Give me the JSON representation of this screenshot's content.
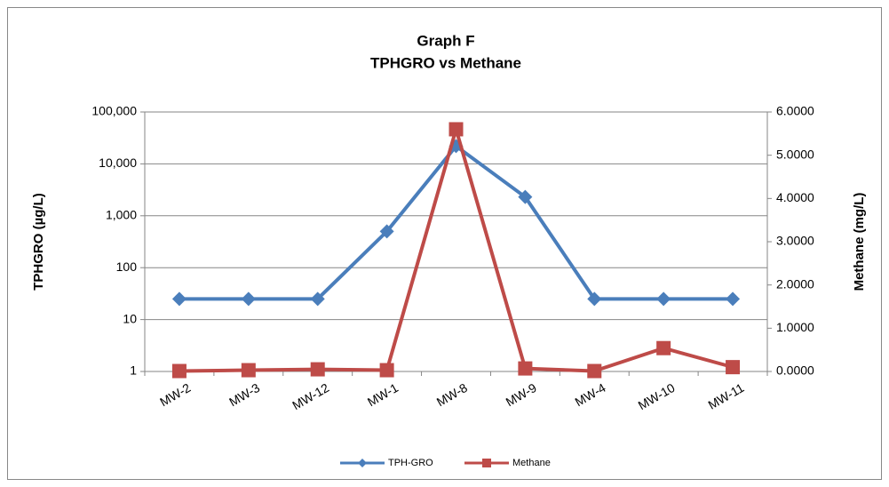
{
  "chart_data": {
    "type": "line",
    "title": "Graph F",
    "subtitle": "TPHGRO vs Methane",
    "ylabel": "TPHGRO (µg/L)",
    "y2label": "Methane (mg/L)",
    "categories": [
      "MW-2",
      "MW-3",
      "MW-12",
      "MW-1",
      "MW-8",
      "MW-9",
      "MW-4",
      "MW-10",
      "MW-11"
    ],
    "series": [
      {
        "name": "TPH-GRO",
        "color": "#4a7ebb",
        "marker": "diamond",
        "values": [
          25,
          25,
          25,
          500,
          22000,
          2300,
          25,
          25,
          25
        ]
      },
      {
        "name": "Methane",
        "color": "#be4b48",
        "marker": "square",
        "axis": "y2",
        "values": [
          0.01,
          0.03,
          0.05,
          0.03,
          5.6,
          0.07,
          0.01,
          0.54,
          0.1
        ]
      }
    ],
    "yscale": "log",
    "ylim": [
      1,
      100000
    ],
    "yticks": [
      1,
      10,
      100,
      {
        "value": 1000,
        "label": "1,000"
      },
      {
        "value": 10000,
        "label": "10,000"
      },
      {
        "value": 100000,
        "label": "100,000"
      }
    ],
    "y2lim": [
      0,
      6
    ],
    "y2ticks": [
      {
        "value": 0,
        "label": "0.0000"
      },
      {
        "value": 1,
        "label": "1.0000"
      },
      {
        "value": 2,
        "label": "2.0000"
      },
      {
        "value": 3,
        "label": "3.0000"
      },
      {
        "value": 4,
        "label": "4.0000"
      },
      {
        "value": 5,
        "label": "5.0000"
      },
      {
        "value": 6,
        "label": "6.0000"
      }
    ],
    "grid": true,
    "legend": "bottom"
  }
}
